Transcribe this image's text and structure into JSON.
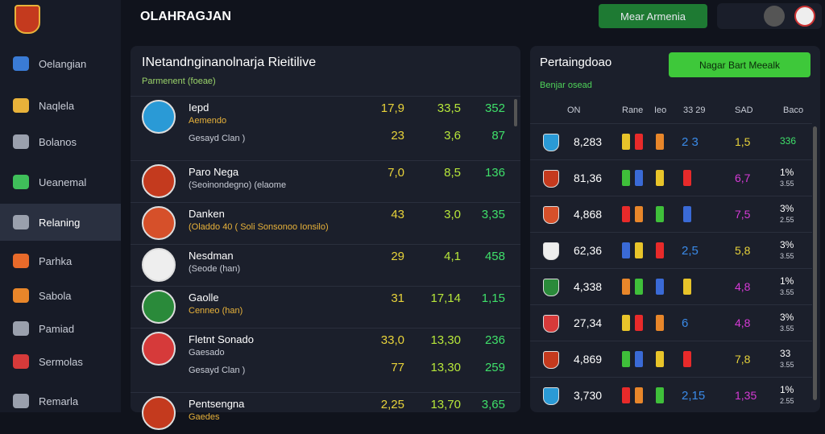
{
  "brand": "OLAHRAGJAN",
  "top_button": "Mear Armenia",
  "nav": [
    "Oelangian",
    "Naqlela",
    "Bolanos",
    "Ueanemal",
    "Relaning",
    "Parhka",
    "Sabola",
    "Pamiad",
    "Sermolas",
    "Remarla"
  ],
  "left_panel": {
    "title": "INetandnginanolnarja Rieitilive",
    "subtitle": "Parmenent (foeae)",
    "rows": [
      {
        "name": "Iepd",
        "sub": "Aemendo",
        "note": "Gesayd Clan )",
        "stats": [
          [
            "17,9",
            "33,5",
            "352"
          ],
          [
            "23",
            "3,6",
            "87"
          ]
        ]
      },
      {
        "name": "Paro Nega",
        "sub": "(Seoinondegno)  (elaome",
        "stats": [
          [
            "7,0",
            "8,5",
            "136"
          ]
        ]
      },
      {
        "name": "Danken",
        "sub": "(Oladdo 40 ( Soli Sonsonoo Ionsilo)",
        "stats": [
          [
            "43",
            "3,0",
            "3,35"
          ]
        ]
      },
      {
        "name": "Nesdman",
        "sub": "(Seode (han)",
        "stats": [
          [
            "29",
            "4,1",
            "458"
          ]
        ]
      },
      {
        "name": "Gaolle",
        "sub": "Cenneo (han)",
        "stats": [
          [
            "31",
            "17,14",
            "1,15"
          ]
        ]
      },
      {
        "name": "Fletnt Sonado",
        "sub": "Gaesado",
        "note": "Gesayd Clan )",
        "stats": [
          [
            "33,0",
            "13,30",
            "236"
          ],
          [
            "77",
            "13,30",
            "259"
          ]
        ]
      },
      {
        "name": "Pentsengna",
        "sub": "Gaedes",
        "stats": [
          [
            "2,25",
            "13,70",
            "3,65"
          ]
        ]
      }
    ]
  },
  "right_panel": {
    "title": "Pertaingdoao",
    "button": "Nagar Bart Meealk",
    "subtitle": "Benjar osead",
    "headers": [
      "ON",
      "Rane",
      "Ieo",
      "33 29",
      "SAD",
      "Baco"
    ],
    "rows": [
      {
        "value": "8,283",
        "extra": "2 3",
        "score": "1,5",
        "pct": "336"
      },
      {
        "value": "81,36",
        "score": "6,7",
        "pct": "1%",
        "pct_sub": "3.55"
      },
      {
        "value": "4,868",
        "score": "7,5",
        "pct": "3%",
        "pct_sub": "2.55"
      },
      {
        "value": "62,36",
        "extra": "2,5",
        "score": "5,8",
        "pct": "3%",
        "pct_sub": "3.55"
      },
      {
        "value": "4,338",
        "score": "4,8",
        "pct": "1%",
        "pct_sub": "3.55"
      },
      {
        "value": "27,34",
        "extra": "6",
        "score": "4,8",
        "pct": "3%",
        "pct_sub": "3.55"
      },
      {
        "value": "4,869",
        "score": "7,8",
        "pct": "33",
        "pct_sub": "3.55"
      },
      {
        "value": "3,730",
        "extra": "2,15",
        "score": "1,35",
        "pct": "1%",
        "pct_sub": "2.55"
      }
    ]
  }
}
